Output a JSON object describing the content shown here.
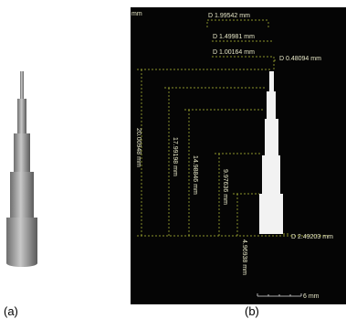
{
  "panels": {
    "a": {
      "label": "(a)"
    },
    "b": {
      "label": "(b)",
      "corner_unit": "mm",
      "diameters": [
        "D 1.99542 mm",
        "D 1.49981 mm",
        "D 1.00164 mm",
        "D 0.48094 mm",
        "D 2.49203 mm"
      ],
      "heights": [
        "20.00948 mm",
        "17.99198 mm",
        "14.98846 mm",
        "9.97636 mm",
        "4.96938 mm"
      ],
      "scale_bar": "6 mm"
    }
  }
}
